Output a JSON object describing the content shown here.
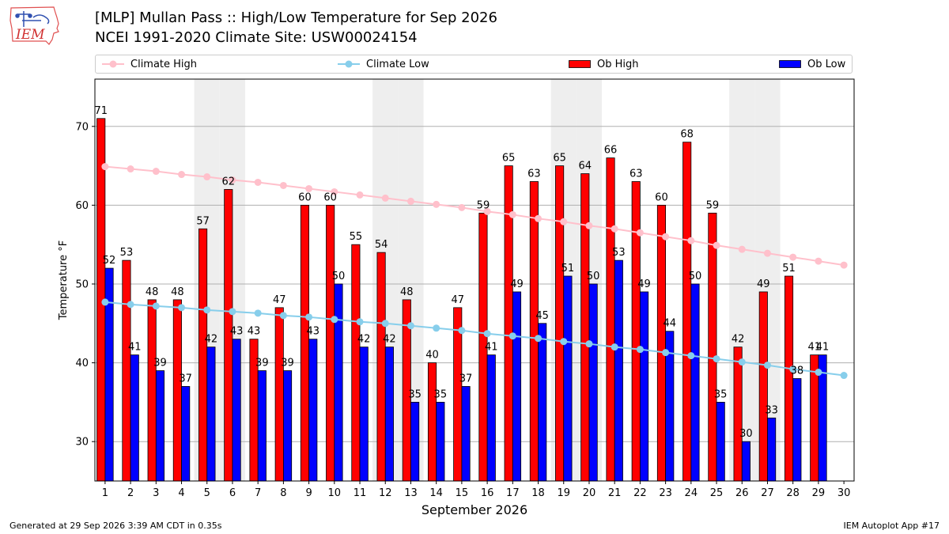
{
  "header": {
    "title_line1": "[MLP] Mullan Pass :: High/Low Temperature for Sep 2026",
    "title_line2": "NCEI 1991-2020 Climate Site: USW00024154",
    "logo_text": "IEM"
  },
  "legend": {
    "climate_high": "Climate High",
    "climate_low": "Climate Low",
    "ob_high": "Ob High",
    "ob_low": "Ob Low"
  },
  "colors": {
    "ob_high": "#ff0000",
    "ob_low": "#0000ff",
    "climate_high": "#ffc0cb",
    "climate_low": "#87ceeb",
    "weekend_band": "#eeeeee",
    "grid": "#b0b0b0"
  },
  "chart_data": {
    "type": "bar",
    "xlabel": "September 2026",
    "ylabel": "Temperature °F",
    "x": [
      1,
      2,
      3,
      4,
      5,
      6,
      7,
      8,
      9,
      10,
      11,
      12,
      13,
      14,
      15,
      16,
      17,
      18,
      19,
      20,
      21,
      22,
      23,
      24,
      25,
      26,
      27,
      28,
      29,
      30
    ],
    "ylim": [
      25,
      76
    ],
    "yticks": [
      30,
      40,
      50,
      60,
      70
    ],
    "grid": "horizontal",
    "legend_position": "top",
    "shaded_days": [
      5,
      6,
      12,
      13,
      19,
      20,
      26,
      27
    ],
    "series": [
      {
        "name": "Ob High",
        "kind": "bar",
        "values": [
          71,
          53,
          48,
          48,
          57,
          62,
          43,
          47,
          60,
          60,
          55,
          54,
          48,
          40,
          47,
          59,
          65,
          63,
          65,
          64,
          66,
          63,
          60,
          68,
          59,
          42,
          49,
          51,
          41,
          null
        ],
        "labels": [
          "71",
          "53",
          "48",
          "48",
          "57",
          "62",
          "43",
          "47",
          "60",
          "60",
          "55",
          "54",
          "48",
          "40",
          "47",
          "59",
          "65",
          "63",
          "65",
          "64",
          "66",
          "63",
          "60",
          "68",
          "59",
          "42",
          "49",
          "51",
          "41",
          ""
        ]
      },
      {
        "name": "Ob Low",
        "kind": "bar",
        "values": [
          52,
          41,
          39,
          37,
          42,
          43,
          39,
          39,
          43,
          50,
          42,
          42,
          35,
          35,
          37,
          41,
          49,
          45,
          51,
          50,
          53,
          49,
          44,
          50,
          35,
          30,
          33,
          38,
          41,
          null
        ],
        "labels": [
          "52",
          "41",
          "39",
          "37",
          "42",
          "43",
          "39",
          "39",
          "43",
          "50",
          "42",
          "42",
          "35",
          "35",
          "37",
          "41",
          "49",
          "45",
          "51",
          "50",
          "53",
          "49",
          "44",
          "50",
          "35",
          "30",
          "33",
          "38",
          "41",
          ""
        ]
      },
      {
        "name": "Climate High",
        "kind": "line",
        "values": [
          64.9,
          64.6,
          64.3,
          63.9,
          63.6,
          63.2,
          62.9,
          62.5,
          62.1,
          61.7,
          61.3,
          60.9,
          60.5,
          60.1,
          59.7,
          59.2,
          58.8,
          58.3,
          57.9,
          57.4,
          57.0,
          56.5,
          56.0,
          55.5,
          54.9,
          54.4,
          53.9,
          53.4,
          52.9,
          52.4
        ]
      },
      {
        "name": "Climate Low",
        "kind": "line",
        "values": [
          47.7,
          47.4,
          47.2,
          47.0,
          46.7,
          46.5,
          46.3,
          46.0,
          45.8,
          45.5,
          45.2,
          45.0,
          44.7,
          44.4,
          44.1,
          43.7,
          43.4,
          43.1,
          42.7,
          42.4,
          42.0,
          41.7,
          41.3,
          40.9,
          40.5,
          40.1,
          39.7,
          39.2,
          38.8,
          38.4
        ]
      }
    ]
  },
  "footer": {
    "left": "Generated at 29 Sep 2026 3:39 AM CDT in 0.35s",
    "right": "IEM Autoplot App #17"
  }
}
